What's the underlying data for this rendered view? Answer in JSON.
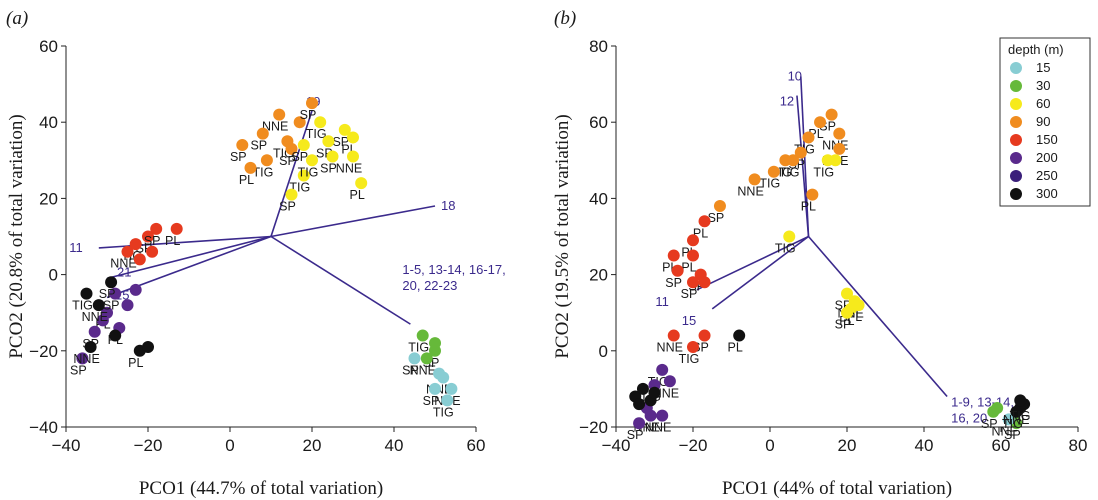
{
  "colors": {
    "15": "#88cdd3",
    "30": "#66b93a",
    "60": "#f6ea1c",
    "90": "#f08c1f",
    "150": "#e63a1f",
    "200": "#5a2a8c",
    "250": "#3a1f7a",
    "300": "#111111",
    "vector": "#3b2a8c"
  },
  "chart_data": [
    {
      "type": "scatter",
      "panel": "(a)",
      "xlabel": "PCO1 (44.7% of total variation)",
      "ylabel": "PCO2 (20.8% of total variation)",
      "xlim": [
        -40,
        60
      ],
      "ylim": [
        -40,
        60
      ],
      "xticks": [
        "−40",
        "−20",
        "0",
        "20",
        "40",
        "60"
      ],
      "yticks": [
        "−40",
        "−20",
        "0",
        "20",
        "40",
        "60"
      ],
      "points": [
        {
          "x": 12,
          "y": 42,
          "depth": "90",
          "label": "NNE"
        },
        {
          "x": 17,
          "y": 40,
          "depth": "90",
          "label": ""
        },
        {
          "x": 20,
          "y": 45,
          "depth": "90",
          "label": "SP"
        },
        {
          "x": 8,
          "y": 37,
          "depth": "90",
          "label": "SP"
        },
        {
          "x": 14,
          "y": 35,
          "depth": "90",
          "label": "TIG"
        },
        {
          "x": 3,
          "y": 34,
          "depth": "90",
          "label": "SP"
        },
        {
          "x": 9,
          "y": 30,
          "depth": "90",
          "label": "TIG"
        },
        {
          "x": 5,
          "y": 28,
          "depth": "90",
          "label": "PL"
        },
        {
          "x": 15,
          "y": 33,
          "depth": "90",
          "label": "SP"
        },
        {
          "x": 22,
          "y": 40,
          "depth": "60",
          "label": "TIG"
        },
        {
          "x": 28,
          "y": 38,
          "depth": "60",
          "label": "SP"
        },
        {
          "x": 24,
          "y": 35,
          "depth": "60",
          "label": "SP"
        },
        {
          "x": 30,
          "y": 36,
          "depth": "60",
          "label": "PL"
        },
        {
          "x": 18,
          "y": 34,
          "depth": "60",
          "label": "SP"
        },
        {
          "x": 25,
          "y": 31,
          "depth": "60",
          "label": "SP"
        },
        {
          "x": 30,
          "y": 31,
          "depth": "60",
          "label": "NNE"
        },
        {
          "x": 32,
          "y": 24,
          "depth": "60",
          "label": "PL"
        },
        {
          "x": 18,
          "y": 26,
          "depth": "60",
          "label": "TIG"
        },
        {
          "x": 15,
          "y": 21,
          "depth": "60",
          "label": "SP"
        },
        {
          "x": 20,
          "y": 30,
          "depth": "60",
          "label": "TIG"
        },
        {
          "x": -20,
          "y": 10,
          "depth": "150",
          "label": "SP"
        },
        {
          "x": -23,
          "y": 8,
          "depth": "150",
          "label": "TIG"
        },
        {
          "x": -13,
          "y": 12,
          "depth": "150",
          "label": "PL"
        },
        {
          "x": -18,
          "y": 12,
          "depth": "150",
          "label": "SP"
        },
        {
          "x": -25,
          "y": 6,
          "depth": "150",
          "label": "NNE"
        },
        {
          "x": -22,
          "y": 4,
          "depth": "150",
          "label": ""
        },
        {
          "x": -19,
          "y": 6,
          "depth": "150",
          "label": ""
        },
        {
          "x": -30,
          "y": -10,
          "depth": "200",
          "label": "PL"
        },
        {
          "x": -27,
          "y": -14,
          "depth": "200",
          "label": "PL"
        },
        {
          "x": -33,
          "y": -15,
          "depth": "200",
          "label": "SP"
        },
        {
          "x": -36,
          "y": -22,
          "depth": "200",
          "label": "SP"
        },
        {
          "x": -28,
          "y": -5,
          "depth": "200",
          "label": "SP"
        },
        {
          "x": -25,
          "y": -8,
          "depth": "200",
          "label": ""
        },
        {
          "x": -23,
          "y": -4,
          "depth": "200",
          "label": ""
        },
        {
          "x": -31,
          "y": -12,
          "depth": "200",
          "label": ""
        },
        {
          "x": -35,
          "y": -5,
          "depth": "300",
          "label": "TIG"
        },
        {
          "x": -32,
          "y": -8,
          "depth": "300",
          "label": "NNE"
        },
        {
          "x": -29,
          "y": -2,
          "depth": "300",
          "label": "SP"
        },
        {
          "x": -34,
          "y": -19,
          "depth": "300",
          "label": "NNE"
        },
        {
          "x": -22,
          "y": -20,
          "depth": "300",
          "label": "PL"
        },
        {
          "x": -20,
          "y": -19,
          "depth": "300",
          "label": ""
        },
        {
          "x": -28,
          "y": -16,
          "depth": "300",
          "label": ""
        },
        {
          "x": 47,
          "y": -16,
          "depth": "30",
          "label": "TIG"
        },
        {
          "x": 50,
          "y": -20,
          "depth": "30",
          "label": "SP"
        },
        {
          "x": 48,
          "y": -22,
          "depth": "30",
          "label": "NNE"
        },
        {
          "x": 50,
          "y": -18,
          "depth": "30",
          "label": ""
        },
        {
          "x": 45,
          "y": -22,
          "depth": "15",
          "label": "SP"
        },
        {
          "x": 52,
          "y": -27,
          "depth": "15",
          "label": "NNE"
        },
        {
          "x": 50,
          "y": -30,
          "depth": "15",
          "label": "SP"
        },
        {
          "x": 54,
          "y": -30,
          "depth": "15",
          "label": "NNE"
        },
        {
          "x": 53,
          "y": -33,
          "depth": "15",
          "label": "TIG"
        },
        {
          "x": 51,
          "y": -26,
          "depth": "15",
          "label": ""
        }
      ],
      "vectors": [
        {
          "to": [
            44,
            -13
          ],
          "label": "1-5, 13-14, 16-17, 20, 22-23"
        },
        {
          "to": [
            20,
            43
          ],
          "label": "19"
        },
        {
          "to": [
            50,
            18
          ],
          "label": "18"
        },
        {
          "to": [
            -32,
            7
          ],
          "label": "11"
        },
        {
          "to": [
            -30,
            -1
          ],
          "label": "21"
        },
        {
          "to": [
            -30,
            -6
          ],
          "label": "15"
        }
      ]
    },
    {
      "type": "scatter",
      "panel": "(b)",
      "xlabel": "PCO1 (44% of total variation)",
      "ylabel": "PCO2 (19.5% of total variation)",
      "xlim": [
        -40,
        80
      ],
      "ylim": [
        -20,
        80
      ],
      "xticks": [
        "−40",
        "−20",
        "0",
        "20",
        "40",
        "60",
        "80"
      ],
      "yticks": [
        "−20",
        "0",
        "20",
        "40",
        "60",
        "80"
      ],
      "legend": {
        "title": "depth (m)",
        "entries": [
          "15",
          "30",
          "60",
          "90",
          "150",
          "200",
          "250",
          "300"
        ],
        "position": "top-right"
      },
      "points": [
        {
          "x": 16,
          "y": 62,
          "depth": "90",
          "label": "SP"
        },
        {
          "x": 13,
          "y": 60,
          "depth": "90",
          "label": "PL"
        },
        {
          "x": 18,
          "y": 57,
          "depth": "90",
          "label": "NNE"
        },
        {
          "x": 18,
          "y": 53,
          "depth": "90",
          "label": "NNE"
        },
        {
          "x": 10,
          "y": 56,
          "depth": "90",
          "label": "TIG"
        },
        {
          "x": 8,
          "y": 52,
          "depth": "90",
          "label": "SP"
        },
        {
          "x": 4,
          "y": 50,
          "depth": "90",
          "label": "TIG"
        },
        {
          "x": 6,
          "y": 50,
          "depth": "90",
          "label": "TIG"
        },
        {
          "x": 1,
          "y": 47,
          "depth": "90",
          "label": "TIG"
        },
        {
          "x": -4,
          "y": 45,
          "depth": "90",
          "label": "NNE"
        },
        {
          "x": 11,
          "y": 41,
          "depth": "90",
          "label": "PL"
        },
        {
          "x": -13,
          "y": 38,
          "depth": "90",
          "label": "SP"
        },
        {
          "x": 15,
          "y": 50,
          "depth": "60",
          "label": "TIG"
        },
        {
          "x": 17,
          "y": 50,
          "depth": "60",
          "label": ""
        },
        {
          "x": 5,
          "y": 30,
          "depth": "60",
          "label": "TIG"
        },
        {
          "x": 20,
          "y": 15,
          "depth": "60",
          "label": "SP"
        },
        {
          "x": 22,
          "y": 13,
          "depth": "60",
          "label": "NNE"
        },
        {
          "x": 21,
          "y": 11,
          "depth": "60",
          "label": "PL"
        },
        {
          "x": 23,
          "y": 12,
          "depth": "60",
          "label": "PL"
        },
        {
          "x": 20,
          "y": 10,
          "depth": "60",
          "label": "SP"
        },
        {
          "x": -17,
          "y": 34,
          "depth": "150",
          "label": "PL"
        },
        {
          "x": -20,
          "y": 29,
          "depth": "150",
          "label": "PL"
        },
        {
          "x": -25,
          "y": 25,
          "depth": "150",
          "label": "PL"
        },
        {
          "x": -20,
          "y": 25,
          "depth": "150",
          "label": "PL"
        },
        {
          "x": -24,
          "y": 21,
          "depth": "150",
          "label": "SP"
        },
        {
          "x": -18,
          "y": 20,
          "depth": "150",
          "label": "SP"
        },
        {
          "x": -20,
          "y": 18,
          "depth": "150",
          "label": "SP"
        },
        {
          "x": -17,
          "y": 18,
          "depth": "150",
          "label": ""
        },
        {
          "x": -25,
          "y": 4,
          "depth": "150",
          "label": "NNE"
        },
        {
          "x": -17,
          "y": 4,
          "depth": "150",
          "label": "SP"
        },
        {
          "x": -20,
          "y": 1,
          "depth": "150",
          "label": "TIG"
        },
        {
          "x": -8,
          "y": 4,
          "depth": "300",
          "label": "PL"
        },
        {
          "x": -28,
          "y": -5,
          "depth": "200",
          "label": "TIG"
        },
        {
          "x": -26,
          "y": -8,
          "depth": "200",
          "label": "NNE"
        },
        {
          "x": -30,
          "y": -9,
          "depth": "200",
          "label": "TIG"
        },
        {
          "x": -31,
          "y": -17,
          "depth": "200",
          "label": "NNE"
        },
        {
          "x": -34,
          "y": -19,
          "depth": "200",
          "label": "SP"
        },
        {
          "x": -28,
          "y": -17,
          "depth": "200",
          "label": "NNE"
        },
        {
          "x": -32,
          "y": -15,
          "depth": "200",
          "label": ""
        },
        {
          "x": -35,
          "y": -12,
          "depth": "300",
          "label": ""
        },
        {
          "x": -33,
          "y": -10,
          "depth": "300",
          "label": ""
        },
        {
          "x": -31,
          "y": -13,
          "depth": "300",
          "label": ""
        },
        {
          "x": -34,
          "y": -14,
          "depth": "300",
          "label": ""
        },
        {
          "x": -30,
          "y": -11,
          "depth": "300",
          "label": ""
        },
        {
          "x": 58,
          "y": -16,
          "depth": "30",
          "label": "SP"
        },
        {
          "x": 59,
          "y": -15,
          "depth": "30",
          "label": ""
        },
        {
          "x": 64,
          "y": -19,
          "depth": "30",
          "label": "SP"
        },
        {
          "x": 62,
          "y": -18,
          "depth": "15",
          "label": "NNE"
        },
        {
          "x": 65,
          "y": -15,
          "depth": "300",
          "label": "NNE"
        },
        {
          "x": 64,
          "y": -16,
          "depth": "300",
          "label": "TIG"
        },
        {
          "x": 66,
          "y": -14,
          "depth": "300",
          "label": "TIG"
        },
        {
          "x": 65,
          "y": -13,
          "depth": "300",
          "label": ""
        }
      ],
      "vectors": [
        {
          "to": [
            46,
            -12
          ],
          "label": "1-9, 13-14, 16, 20"
        },
        {
          "to": [
            8,
            72
          ],
          "label": "10"
        },
        {
          "to": [
            7,
            67
          ],
          "label": "12"
        },
        {
          "to": [
            -19,
            16
          ],
          "label": "11"
        },
        {
          "to": [
            -15,
            11
          ],
          "label": "15"
        }
      ]
    }
  ]
}
